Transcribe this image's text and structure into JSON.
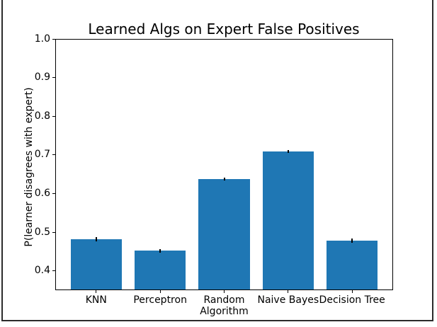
{
  "window": {
    "frame_color": "#2b2b2b",
    "background_color": "#ffffff"
  },
  "chart_data": {
    "type": "bar",
    "title": "Learned Algs on Expert False Positives",
    "xlabel": "",
    "ylabel": "P(learner disagrees with expert)",
    "categories": [
      "KNN",
      "Perceptron",
      "Random\nAlgorithm",
      "Naive Bayes",
      "Decision Tree"
    ],
    "values": [
      0.482,
      0.452,
      0.637,
      0.709,
      0.478
    ],
    "errors": [
      0.006,
      0.005,
      0.004,
      0.004,
      0.005
    ],
    "ylim": [
      0.35,
      1.0
    ],
    "xlim": [
      -0.64,
      4.64
    ],
    "yticks": [
      0.4,
      0.5,
      0.6,
      0.7,
      0.8,
      0.9,
      1.0
    ],
    "bar_width_fraction": 0.8,
    "bar_color": "#1f77b4",
    "error_color": "#000000",
    "axis_color": "#000000",
    "grid": false,
    "legend_position": "none"
  }
}
